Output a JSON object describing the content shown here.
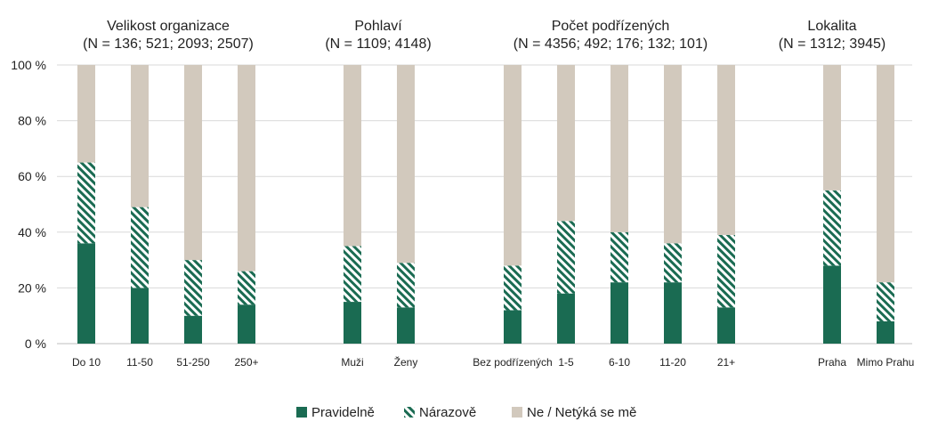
{
  "chart_data": {
    "type": "bar",
    "stacked": true,
    "percent": true,
    "ylim": [
      0,
      100
    ],
    "yticks": [
      "0 %",
      "20 %",
      "40 %",
      "60 %",
      "80 %",
      "100 %"
    ],
    "ytick_values": [
      0,
      20,
      40,
      60,
      80,
      100
    ],
    "grid": true,
    "legend_position": "bottom",
    "series": [
      {
        "name": "Pravidelně",
        "color": "#1a6b52",
        "pattern": "solid"
      },
      {
        "name": "Nárazově",
        "color": "#1a6b52",
        "pattern": "hatch"
      },
      {
        "name": "Ne / Netýká se mě",
        "color": "#d2c9bd",
        "pattern": "solid"
      }
    ],
    "groups": [
      {
        "title": "Velikost organizace",
        "subtitle": "(N = 136; 521; 2093; 2507)",
        "categories": [
          "Do 10",
          "11-50",
          "51-250",
          "250+"
        ],
        "values": [
          [
            36,
            29,
            35
          ],
          [
            20,
            29,
            51
          ],
          [
            10,
            20,
            70
          ],
          [
            14,
            12,
            74
          ]
        ]
      },
      {
        "title": "Pohlaví",
        "subtitle": "(N = 1109; 4148)",
        "categories": [
          "Muži",
          "Ženy"
        ],
        "values": [
          [
            15,
            20,
            65
          ],
          [
            13,
            16,
            71
          ]
        ]
      },
      {
        "title": "Počet podřízených",
        "subtitle": "(N = 4356; 492; 176; 132; 101)",
        "categories": [
          "Bez podřízených",
          "1-5",
          "6-10",
          "11-20",
          "21+"
        ],
        "values": [
          [
            12,
            16,
            72
          ],
          [
            18,
            26,
            56
          ],
          [
            22,
            18,
            60
          ],
          [
            22,
            14,
            64
          ],
          [
            13,
            26,
            61
          ]
        ]
      },
      {
        "title": "Lokalita",
        "subtitle": "(N = 1312; 3945)",
        "categories": [
          "Praha",
          "Mimo Prahu"
        ],
        "values": [
          [
            28,
            27,
            45
          ],
          [
            8,
            14,
            78
          ]
        ]
      }
    ]
  }
}
